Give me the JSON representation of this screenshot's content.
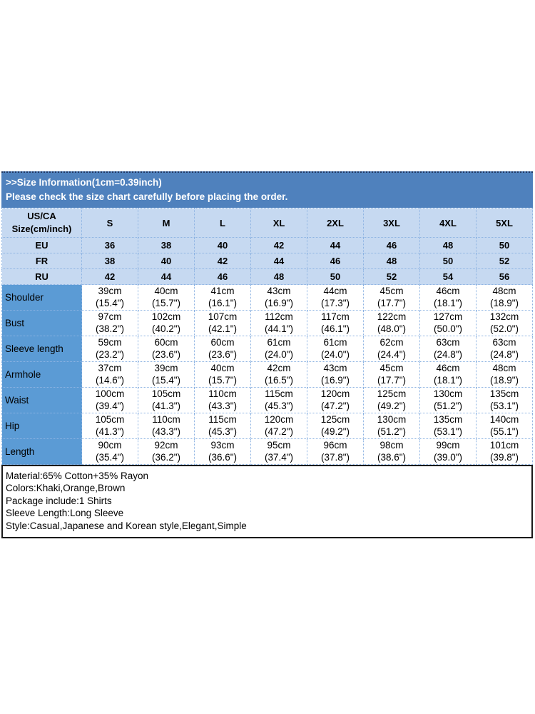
{
  "banner": {
    "line1": ">>Size Information(1cm=0.39inch)",
    "line2": "Please check the size chart carefully before placing the order."
  },
  "size_chart": {
    "corner_header": [
      "US/CA",
      "Size(cm/inch)"
    ],
    "size_labels": [
      "S",
      "M",
      "L",
      "XL",
      "2XL",
      "3XL",
      "4XL",
      "5XL"
    ],
    "region_rows": [
      {
        "label": "EU",
        "values": [
          "36",
          "38",
          "40",
          "42",
          "44",
          "46",
          "48",
          "50"
        ]
      },
      {
        "label": "FR",
        "values": [
          "38",
          "40",
          "42",
          "44",
          "46",
          "48",
          "50",
          "52"
        ]
      },
      {
        "label": "RU",
        "values": [
          "42",
          "44",
          "46",
          "48",
          "50",
          "52",
          "54",
          "56"
        ]
      }
    ],
    "measurement_rows": [
      {
        "label": "Shoulder",
        "cm": [
          "39cm",
          "40cm",
          "41cm",
          "43cm",
          "44cm",
          "45cm",
          "46cm",
          "48cm"
        ],
        "inch": [
          "(15.4\")",
          "(15.7\")",
          "(16.1\")",
          "(16.9\")",
          "(17.3\")",
          "(17.7\")",
          "(18.1\")",
          "(18.9\")"
        ]
      },
      {
        "label": "Bust",
        "cm": [
          "97cm",
          "102cm",
          "107cm",
          "112cm",
          "117cm",
          "122cm",
          "127cm",
          "132cm"
        ],
        "inch": [
          "(38.2\")",
          "(40.2\")",
          "(42.1\")",
          "(44.1\")",
          "(46.1\")",
          "(48.0\")",
          "(50.0\")",
          "(52.0\")"
        ]
      },
      {
        "label": "Sleeve length",
        "cm": [
          "59cm",
          "60cm",
          "60cm",
          "61cm",
          "61cm",
          "62cm",
          "63cm",
          "63cm"
        ],
        "inch": [
          "(23.2\")",
          "(23.6\")",
          "(23.6\")",
          "(24.0\")",
          "(24.0\")",
          "(24.4\")",
          "(24.8\")",
          "(24.8\")"
        ]
      },
      {
        "label": "Armhole",
        "cm": [
          "37cm",
          "39cm",
          "40cm",
          "42cm",
          "43cm",
          "45cm",
          "46cm",
          "48cm"
        ],
        "inch": [
          "(14.6\")",
          "(15.4\")",
          "(15.7\")",
          "(16.5\")",
          "(16.9\")",
          "(17.7\")",
          "(18.1\")",
          "(18.9\")"
        ]
      },
      {
        "label": "Waist",
        "cm": [
          "100cm",
          "105cm",
          "110cm",
          "115cm",
          "120cm",
          "125cm",
          "130cm",
          "135cm"
        ],
        "inch": [
          "(39.4\")",
          "(41.3\")",
          "(43.3\")",
          "(45.3\")",
          "(47.2\")",
          "(49.2\")",
          "(51.2\")",
          "(53.1\")"
        ]
      },
      {
        "label": "Hip",
        "cm": [
          "105cm",
          "110cm",
          "115cm",
          "120cm",
          "125cm",
          "130cm",
          "135cm",
          "140cm"
        ],
        "inch": [
          "(41.3\")",
          "(43.3\")",
          "(45.3\")",
          "(47.2\")",
          "(49.2\")",
          "(51.2\")",
          "(53.1\")",
          "(55.1\")"
        ]
      },
      {
        "label": "Length",
        "cm": [
          "90cm",
          "92cm",
          "93cm",
          "95cm",
          "96cm",
          "98cm",
          "99cm",
          "101cm"
        ],
        "inch": [
          "(35.4\")",
          "(36.2\")",
          "(36.6\")",
          "(37.4\")",
          "(37.8\")",
          "(38.6\")",
          "(39.0\")",
          "(39.8\")"
        ]
      }
    ]
  },
  "product_info": {
    "lines": [
      "Material:65% Cotton+35% Rayon",
      "Colors:Khaki,Orange,Brown",
      "Package include:1 Shirts",
      "Sleeve Length:Long Sleeve",
      "Style:Casual,Japanese and Korean style,Elegant,Simple"
    ]
  },
  "colors": {
    "banner_bg": "#4f81bd",
    "banner_text": "#ffffff",
    "top_line": "#1f3864",
    "header_row_bg": "#c6d9f1",
    "label_col_bg": "#5b9bd5",
    "border_dotted": "#8db3e2",
    "info_border": "#1a1a1a"
  }
}
